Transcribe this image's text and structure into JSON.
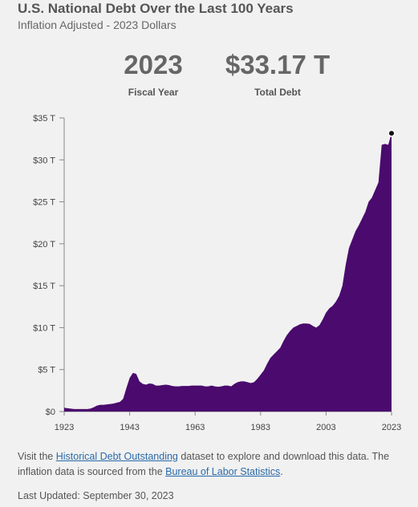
{
  "header": {
    "title": "U.S. National Debt Over the Last 100 Years",
    "subtitle": "Inflation Adjusted - 2023 Dollars"
  },
  "stats": {
    "year_value": "2023",
    "year_label": "Fiscal Year",
    "debt_value": "$33.17 T",
    "debt_label": "Total Debt"
  },
  "chart_data": {
    "type": "area",
    "xlabel": "",
    "ylabel": "",
    "xlim": [
      1923,
      2023
    ],
    "ylim": [
      0,
      35
    ],
    "x_ticks": [
      "1923",
      "1943",
      "1963",
      "1983",
      "2003",
      "2023"
    ],
    "y_ticks": [
      "$0",
      "$5 T",
      "$10 T",
      "$15 T",
      "$20 T",
      "$25 T",
      "$30 T",
      "$35 T"
    ],
    "grid": false,
    "color": "#4a0a6e",
    "highlight": {
      "x": 2023,
      "y": 33.17
    },
    "series": [
      {
        "x": [
          1923,
          1924,
          1925,
          1926,
          1927,
          1928,
          1929,
          1930,
          1931,
          1932,
          1933,
          1934,
          1935,
          1936,
          1937,
          1938,
          1939,
          1940,
          1941,
          1942,
          1943,
          1944,
          1945,
          1946,
          1947,
          1948,
          1949,
          1950,
          1951,
          1952,
          1953,
          1954,
          1955,
          1956,
          1957,
          1958,
          1959,
          1960,
          1961,
          1962,
          1963,
          1964,
          1965,
          1966,
          1967,
          1968,
          1969,
          1970,
          1971,
          1972,
          1973,
          1974,
          1975,
          1976,
          1977,
          1978,
          1979,
          1980,
          1981,
          1982,
          1983,
          1984,
          1985,
          1986,
          1987,
          1988,
          1989,
          1990,
          1991,
          1992,
          1993,
          1994,
          1995,
          1996,
          1997,
          1998,
          1999,
          2000,
          2001,
          2002,
          2003,
          2004,
          2005,
          2006,
          2007,
          2008,
          2009,
          2010,
          2011,
          2012,
          2013,
          2014,
          2015,
          2016,
          2017,
          2018,
          2019,
          2020,
          2021,
          2022,
          2023
        ],
        "values": [
          0.45,
          0.4,
          0.35,
          0.3,
          0.3,
          0.3,
          0.3,
          0.3,
          0.35,
          0.5,
          0.7,
          0.8,
          0.8,
          0.85,
          0.9,
          0.95,
          1.05,
          1.15,
          1.5,
          2.8,
          4.0,
          4.6,
          4.5,
          3.6,
          3.3,
          3.2,
          3.35,
          3.3,
          3.1,
          3.1,
          3.15,
          3.2,
          3.15,
          3.05,
          3.0,
          3.0,
          3.05,
          3.05,
          3.05,
          3.1,
          3.1,
          3.1,
          3.1,
          3.0,
          3.0,
          3.1,
          3.0,
          2.95,
          3.0,
          3.1,
          3.1,
          3.0,
          3.3,
          3.5,
          3.6,
          3.6,
          3.5,
          3.4,
          3.5,
          3.9,
          4.4,
          4.9,
          5.7,
          6.4,
          6.8,
          7.2,
          7.6,
          8.4,
          9.1,
          9.6,
          10.0,
          10.2,
          10.4,
          10.5,
          10.5,
          10.45,
          10.2,
          10.0,
          10.3,
          11.0,
          11.8,
          12.3,
          12.6,
          13.1,
          13.8,
          15.0,
          17.5,
          19.5,
          20.5,
          21.5,
          22.2,
          23.0,
          23.8,
          25.0,
          25.5,
          26.4,
          27.3,
          31.8,
          31.9,
          31.8,
          33.17
        ]
      }
    ]
  },
  "footer": {
    "text1": "Visit the ",
    "link1": "Historical Debt Outstanding",
    "text2": " dataset to explore and download this data. The inflation data is sourced from the ",
    "link2": "Bureau of Labor Statistics",
    "text3": ".",
    "updated": "Last Updated: September 30, 2023"
  }
}
